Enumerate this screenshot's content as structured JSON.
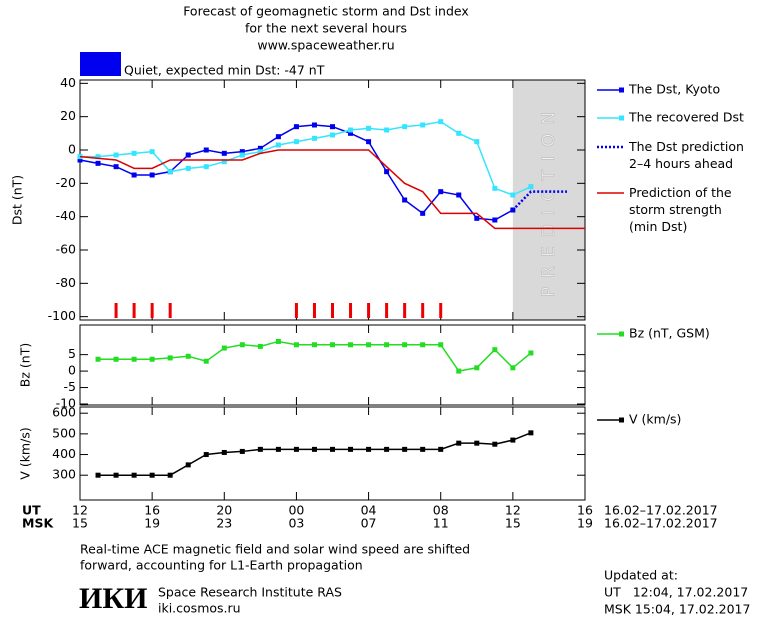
{
  "header": {
    "title_lines": [
      "Forecast of geomagnetic storm and Dst index",
      "for the next several hours",
      "www.spaceweather.ru"
    ],
    "status": "Quiet, expected min Dst: -47 nT",
    "status_color": "#0000ee"
  },
  "chart_data": [
    {
      "type": "line",
      "ylabel": "Dst (nT)",
      "xlim": [
        0,
        28
      ],
      "ylim": [
        -102,
        42
      ],
      "yticks": [
        40,
        20,
        0,
        -20,
        -40,
        -60,
        -80,
        -100
      ],
      "shaded_region": {
        "xlim": [
          24,
          28
        ],
        "label": "PREDICTION",
        "color": "#d9d9d9"
      },
      "event_marks": {
        "color": "#ee0000",
        "x": [
          2,
          3,
          4,
          5,
          12,
          13,
          14,
          15,
          16,
          17,
          18,
          19,
          20
        ]
      },
      "series": [
        {
          "name": "The Dst, Kyoto",
          "color": "#0000ee",
          "marker": "square",
          "line_style": "solid",
          "x": [
            0,
            1,
            2,
            3,
            4,
            5,
            6,
            7,
            8,
            9,
            10,
            11,
            12,
            13,
            14,
            15,
            16,
            17,
            18,
            19,
            20,
            21,
            22,
            23,
            24
          ],
          "values": [
            -6,
            -8,
            -10,
            -15,
            -15,
            -13,
            -3,
            0,
            -2,
            -1,
            1,
            8,
            14,
            15,
            14,
            10,
            5,
            -13,
            -30,
            -38,
            -25,
            -27,
            -41,
            -42,
            -36
          ]
        },
        {
          "name": "The recovered Dst",
          "color": "#33e5ff",
          "marker": "square",
          "line_style": "solid",
          "x": [
            0,
            1,
            2,
            3,
            4,
            5,
            6,
            7,
            8,
            9,
            10,
            11,
            12,
            13,
            14,
            15,
            16,
            17,
            18,
            19,
            20,
            21,
            22,
            23,
            24,
            25
          ],
          "values": [
            -4,
            -4,
            -3,
            -2,
            -1,
            -13,
            -11,
            -10,
            -7,
            -3,
            -1,
            3,
            5,
            7,
            9,
            12,
            13,
            12,
            14,
            15,
            17,
            10,
            5,
            -23,
            -27,
            -22
          ]
        },
        {
          "name": "The Dst prediction\n2–4 hours ahead",
          "color": "#0000ee",
          "marker": "none",
          "line_style": "dotted",
          "x": [
            24,
            25,
            27
          ],
          "values": [
            -36,
            -25,
            -25
          ]
        },
        {
          "name": "Prediction of the\nstorm strength\n(min Dst)",
          "color": "#dd0000",
          "marker": "none",
          "line_style": "solid",
          "x": [
            0,
            2,
            3,
            4,
            5,
            9,
            10,
            11,
            16,
            17,
            18,
            19,
            20,
            22,
            23,
            28
          ],
          "values": [
            -4,
            -6,
            -11,
            -11,
            -6,
            -6,
            -2,
            0,
            0,
            -10,
            -20,
            -25,
            -38,
            -38,
            -47,
            -47
          ]
        }
      ]
    },
    {
      "type": "line",
      "ylabel": "Bz (nT)",
      "xlim": [
        0,
        28
      ],
      "ylim": [
        -10.3,
        14
      ],
      "yticks": [
        5,
        0,
        -5,
        -10
      ],
      "series": [
        {
          "name": "Bz (nT, GSM)",
          "color": "#22dd22",
          "marker": "square",
          "line_style": "solid",
          "x": [
            1,
            2,
            3,
            4,
            5,
            6,
            7,
            8,
            9,
            10,
            11,
            12,
            13,
            14,
            15,
            16,
            17,
            18,
            19,
            20,
            21,
            22,
            23,
            24,
            25
          ],
          "values": [
            3.6,
            3.6,
            3.6,
            3.6,
            4,
            4.5,
            3,
            7,
            8,
            7.5,
            9,
            8,
            8,
            8,
            8,
            8,
            8,
            8,
            8,
            8,
            0,
            1,
            6.5,
            1,
            5.5
          ]
        }
      ]
    },
    {
      "type": "line",
      "ylabel": "V (km/s)",
      "xlim": [
        0,
        28
      ],
      "ylim": [
        180,
        630
      ],
      "yticks": [
        600,
        500,
        400,
        300
      ],
      "series": [
        {
          "name": "V (km/s)",
          "color": "#000000",
          "marker": "square",
          "line_style": "solid",
          "x": [
            1,
            2,
            3,
            4,
            5,
            6,
            7,
            8,
            9,
            10,
            11,
            12,
            13,
            14,
            15,
            16,
            17,
            18,
            19,
            20,
            21,
            22,
            23,
            24,
            25
          ],
          "values": [
            300,
            300,
            300,
            300,
            300,
            350,
            400,
            410,
            415,
            425,
            425,
            425,
            425,
            425,
            425,
            425,
            425,
            425,
            425,
            425,
            455,
            455,
            450,
            470,
            505
          ]
        }
      ],
      "xlabel": "UT",
      "x_dates": "16.02–17.02.2017",
      "xticks": [
        {
          "value": 0,
          "label": "12"
        },
        {
          "value": 4,
          "label": "16"
        },
        {
          "value": 8,
          "label": "20"
        },
        {
          "value": 12,
          "label": "00"
        },
        {
          "value": 16,
          "label": "04"
        },
        {
          "value": 20,
          "label": "08"
        },
        {
          "value": 24,
          "label": "12"
        },
        {
          "value": 28,
          "label": "16"
        }
      ],
      "x2label": "MSK",
      "x2_dates": "16.02–17.02.2017",
      "x2ticks": [
        {
          "value": 0,
          "label": "15"
        },
        {
          "value": 4,
          "label": "19"
        },
        {
          "value": 8,
          "label": "23"
        },
        {
          "value": 12,
          "label": "03"
        },
        {
          "value": 16,
          "label": "07"
        },
        {
          "value": 20,
          "label": "11"
        },
        {
          "value": 24,
          "label": "15"
        },
        {
          "value": 28,
          "label": "19"
        }
      ]
    }
  ],
  "footer": {
    "note_lines": [
      "Real-time ACE magnetic field and solar wind speed are shifted",
      "forward, accounting for L1-Earth propagation"
    ],
    "logo": "ИКИ",
    "institute": "Space Research Institute RAS",
    "website": "iki.cosmos.ru",
    "updated_title": "Updated at:",
    "updated_ut": "UT   12:04, 17.02.2017",
    "updated_msk": "MSK 15:04, 17.02.2017"
  }
}
